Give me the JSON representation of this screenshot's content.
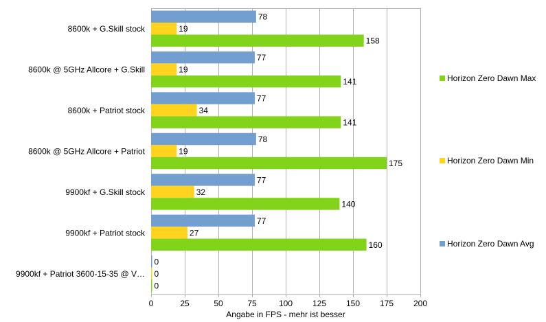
{
  "chart_data": {
    "type": "bar",
    "orientation": "horizontal",
    "categories": [
      "8600k + G.Skill stock",
      "8600k @ 5GHz Allcore + G.Skill",
      "8600k + Patriot stock",
      "8600k @ 5GHz Allcore + Patriot",
      "9900kf + G.Skill stock",
      "9900kf + Patriot stock",
      "9900kf + Patriot 3600-15-35 @ V…"
    ],
    "series": [
      {
        "name": "Horizon Zero Dawn Avg",
        "color": "#729fcf",
        "values": [
          78,
          77,
          77,
          78,
          77,
          77,
          0
        ]
      },
      {
        "name": "Horizon Zero Dawn Min",
        "color": "#ffd320",
        "values": [
          19,
          19,
          34,
          19,
          32,
          27,
          0
        ]
      },
      {
        "name": "Horizon Zero Dawn Max",
        "color": "#81d41a",
        "values": [
          158,
          141,
          141,
          175,
          140,
          160,
          0
        ]
      }
    ],
    "xlabel": "Angabe in FPS - mehr ist besser",
    "ylabel": "",
    "xlim": [
      0,
      200
    ],
    "xticks": [
      "0",
      "25",
      "50",
      "75",
      "100",
      "125",
      "150",
      "175",
      "200"
    ],
    "grid": "vertical-major",
    "legend": {
      "position": "right",
      "order": [
        "Horizon Zero Dawn Max",
        "Horizon Zero Dawn Min",
        "Horizon Zero Dawn Avg"
      ]
    }
  }
}
